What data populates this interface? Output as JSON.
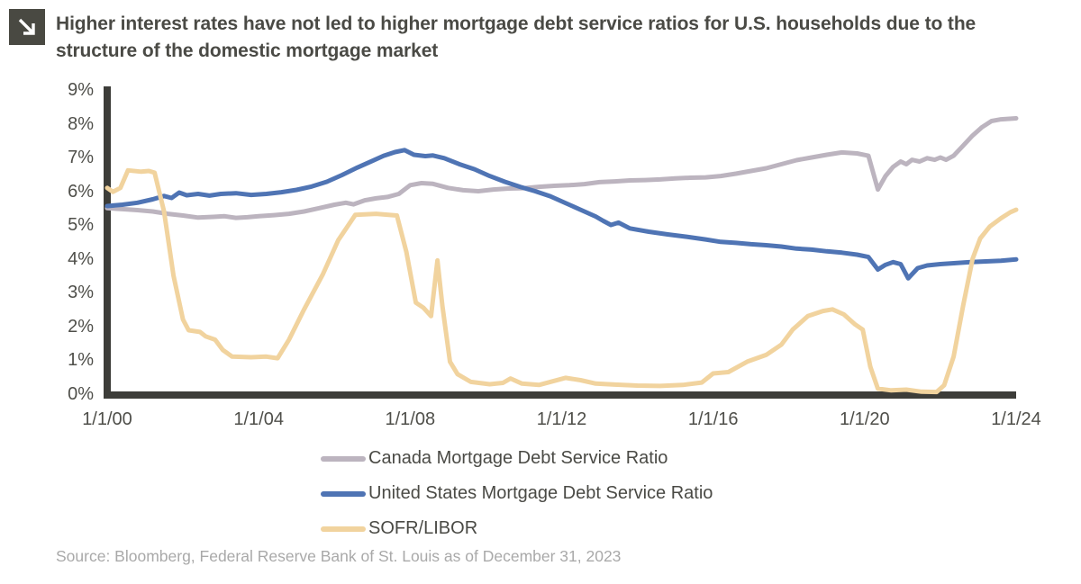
{
  "header": {
    "icon": "arrow-down-right"
  },
  "chart_data": {
    "type": "line",
    "title": "Higher interest rates have not led to higher mortgage debt service ratios for U.S. households due to the structure of the domestic mortgage market",
    "source": "Source: Bloomberg, Federal Reserve Bank of St. Louis as of December 31, 2023",
    "axis_color": "#3d3d39",
    "grid": "off",
    "legend_position": "bottom-center",
    "x_axis": {
      "range": [
        2000,
        2024
      ],
      "ticks": [
        "1/1/00",
        "1/1/04",
        "1/1/08",
        "1/1/12",
        "1/1/16",
        "1/1/20",
        "1/1/24"
      ]
    },
    "y_axis": {
      "range": [
        0,
        9
      ],
      "unit": "%",
      "ticks": [
        "0%",
        "1%",
        "2%",
        "3%",
        "4%",
        "5%",
        "6%",
        "7%",
        "8%",
        "9%"
      ]
    },
    "series": [
      {
        "id": "canada",
        "name": "Canada Mortgage Debt Service Ratio",
        "color": "#bcb4bf",
        "points": [
          [
            2000.0,
            5.5
          ],
          [
            2000.4,
            5.47
          ],
          [
            2000.8,
            5.44
          ],
          [
            2001.2,
            5.4
          ],
          [
            2001.6,
            5.33
          ],
          [
            2002.0,
            5.28
          ],
          [
            2002.4,
            5.22
          ],
          [
            2002.8,
            5.24
          ],
          [
            2003.1,
            5.26
          ],
          [
            2003.4,
            5.21
          ],
          [
            2003.7,
            5.23
          ],
          [
            2004.0,
            5.26
          ],
          [
            2004.4,
            5.29
          ],
          [
            2004.8,
            5.33
          ],
          [
            2005.2,
            5.4
          ],
          [
            2005.6,
            5.5
          ],
          [
            2006.0,
            5.6
          ],
          [
            2006.3,
            5.66
          ],
          [
            2006.5,
            5.61
          ],
          [
            2006.8,
            5.73
          ],
          [
            2007.1,
            5.79
          ],
          [
            2007.4,
            5.83
          ],
          [
            2007.7,
            5.92
          ],
          [
            2008.0,
            6.18
          ],
          [
            2008.3,
            6.24
          ],
          [
            2008.6,
            6.22
          ],
          [
            2009.0,
            6.1
          ],
          [
            2009.4,
            6.03
          ],
          [
            2009.8,
            6.0
          ],
          [
            2010.2,
            6.05
          ],
          [
            2010.6,
            6.08
          ],
          [
            2011.0,
            6.09
          ],
          [
            2011.4,
            6.13
          ],
          [
            2011.8,
            6.16
          ],
          [
            2012.2,
            6.18
          ],
          [
            2012.6,
            6.21
          ],
          [
            2013.0,
            6.27
          ],
          [
            2013.4,
            6.29
          ],
          [
            2013.8,
            6.32
          ],
          [
            2014.2,
            6.33
          ],
          [
            2014.6,
            6.35
          ],
          [
            2015.0,
            6.38
          ],
          [
            2015.4,
            6.4
          ],
          [
            2015.8,
            6.41
          ],
          [
            2016.2,
            6.45
          ],
          [
            2016.6,
            6.52
          ],
          [
            2017.0,
            6.6
          ],
          [
            2017.4,
            6.68
          ],
          [
            2017.8,
            6.8
          ],
          [
            2018.2,
            6.92
          ],
          [
            2018.6,
            7.0
          ],
          [
            2019.0,
            7.08
          ],
          [
            2019.4,
            7.15
          ],
          [
            2019.8,
            7.12
          ],
          [
            2020.1,
            7.05
          ],
          [
            2020.35,
            6.05
          ],
          [
            2020.55,
            6.45
          ],
          [
            2020.75,
            6.72
          ],
          [
            2020.95,
            6.88
          ],
          [
            2021.1,
            6.8
          ],
          [
            2021.25,
            6.93
          ],
          [
            2021.45,
            6.88
          ],
          [
            2021.65,
            6.98
          ],
          [
            2021.85,
            6.93
          ],
          [
            2022.0,
            7.0
          ],
          [
            2022.15,
            6.93
          ],
          [
            2022.35,
            7.05
          ],
          [
            2022.6,
            7.35
          ],
          [
            2022.85,
            7.65
          ],
          [
            2023.1,
            7.9
          ],
          [
            2023.35,
            8.08
          ],
          [
            2023.6,
            8.13
          ],
          [
            2024.0,
            8.16
          ]
        ]
      },
      {
        "id": "united-states",
        "name": "United States Mortgage Debt Service Ratio",
        "color": "#4f74b4",
        "points": [
          [
            2000.0,
            5.56
          ],
          [
            2000.4,
            5.6
          ],
          [
            2000.8,
            5.66
          ],
          [
            2001.2,
            5.76
          ],
          [
            2001.5,
            5.86
          ],
          [
            2001.7,
            5.8
          ],
          [
            2001.9,
            5.96
          ],
          [
            2002.1,
            5.88
          ],
          [
            2002.4,
            5.92
          ],
          [
            2002.7,
            5.87
          ],
          [
            2003.0,
            5.92
          ],
          [
            2003.4,
            5.94
          ],
          [
            2003.8,
            5.89
          ],
          [
            2004.2,
            5.92
          ],
          [
            2004.6,
            5.97
          ],
          [
            2005.0,
            6.04
          ],
          [
            2005.4,
            6.14
          ],
          [
            2005.8,
            6.28
          ],
          [
            2006.2,
            6.48
          ],
          [
            2006.6,
            6.7
          ],
          [
            2007.0,
            6.9
          ],
          [
            2007.3,
            7.05
          ],
          [
            2007.6,
            7.16
          ],
          [
            2007.85,
            7.22
          ],
          [
            2008.1,
            7.08
          ],
          [
            2008.4,
            7.04
          ],
          [
            2008.6,
            7.06
          ],
          [
            2008.9,
            6.98
          ],
          [
            2009.3,
            6.8
          ],
          [
            2009.7,
            6.65
          ],
          [
            2010.1,
            6.45
          ],
          [
            2010.5,
            6.28
          ],
          [
            2010.9,
            6.13
          ],
          [
            2011.3,
            6.0
          ],
          [
            2011.7,
            5.85
          ],
          [
            2012.1,
            5.65
          ],
          [
            2012.5,
            5.45
          ],
          [
            2012.9,
            5.25
          ],
          [
            2013.1,
            5.12
          ],
          [
            2013.3,
            5.0
          ],
          [
            2013.5,
            5.07
          ],
          [
            2013.8,
            4.9
          ],
          [
            2014.3,
            4.8
          ],
          [
            2014.8,
            4.72
          ],
          [
            2015.3,
            4.65
          ],
          [
            2015.8,
            4.57
          ],
          [
            2016.2,
            4.5
          ],
          [
            2016.6,
            4.47
          ],
          [
            2017.0,
            4.43
          ],
          [
            2017.4,
            4.4
          ],
          [
            2017.8,
            4.36
          ],
          [
            2018.2,
            4.3
          ],
          [
            2018.6,
            4.27
          ],
          [
            2019.0,
            4.22
          ],
          [
            2019.4,
            4.18
          ],
          [
            2019.8,
            4.12
          ],
          [
            2020.1,
            4.05
          ],
          [
            2020.35,
            3.68
          ],
          [
            2020.55,
            3.82
          ],
          [
            2020.75,
            3.9
          ],
          [
            2020.95,
            3.84
          ],
          [
            2021.15,
            3.42
          ],
          [
            2021.4,
            3.72
          ],
          [
            2021.65,
            3.8
          ],
          [
            2022.0,
            3.84
          ],
          [
            2022.4,
            3.87
          ],
          [
            2022.8,
            3.9
          ],
          [
            2023.2,
            3.92
          ],
          [
            2023.6,
            3.94
          ],
          [
            2024.0,
            3.98
          ]
        ]
      },
      {
        "id": "sofr-libor",
        "name": "SOFR/LIBOR",
        "color": "#f1d39e",
        "points": [
          [
            2000.0,
            6.1
          ],
          [
            2000.15,
            5.98
          ],
          [
            2000.35,
            6.1
          ],
          [
            2000.55,
            6.62
          ],
          [
            2000.9,
            6.58
          ],
          [
            2001.1,
            6.6
          ],
          [
            2001.25,
            6.55
          ],
          [
            2001.5,
            5.4
          ],
          [
            2001.75,
            3.5
          ],
          [
            2002.0,
            2.2
          ],
          [
            2002.15,
            1.88
          ],
          [
            2002.45,
            1.83
          ],
          [
            2002.6,
            1.7
          ],
          [
            2002.85,
            1.6
          ],
          [
            2003.05,
            1.3
          ],
          [
            2003.3,
            1.1
          ],
          [
            2003.8,
            1.08
          ],
          [
            2004.2,
            1.1
          ],
          [
            2004.5,
            1.05
          ],
          [
            2004.8,
            1.6
          ],
          [
            2005.2,
            2.5
          ],
          [
            2005.7,
            3.55
          ],
          [
            2006.1,
            4.55
          ],
          [
            2006.55,
            5.3
          ],
          [
            2007.1,
            5.33
          ],
          [
            2007.65,
            5.28
          ],
          [
            2007.9,
            4.2
          ],
          [
            2008.15,
            2.7
          ],
          [
            2008.35,
            2.55
          ],
          [
            2008.55,
            2.3
          ],
          [
            2008.72,
            3.95
          ],
          [
            2008.85,
            2.6
          ],
          [
            2009.05,
            0.95
          ],
          [
            2009.25,
            0.58
          ],
          [
            2009.6,
            0.35
          ],
          [
            2010.1,
            0.28
          ],
          [
            2010.45,
            0.32
          ],
          [
            2010.65,
            0.45
          ],
          [
            2010.95,
            0.3
          ],
          [
            2011.4,
            0.26
          ],
          [
            2011.8,
            0.38
          ],
          [
            2012.1,
            0.47
          ],
          [
            2012.5,
            0.4
          ],
          [
            2012.9,
            0.3
          ],
          [
            2013.4,
            0.27
          ],
          [
            2014.0,
            0.24
          ],
          [
            2014.6,
            0.23
          ],
          [
            2015.2,
            0.26
          ],
          [
            2015.7,
            0.33
          ],
          [
            2016.0,
            0.6
          ],
          [
            2016.4,
            0.64
          ],
          [
            2016.9,
            0.95
          ],
          [
            2017.4,
            1.15
          ],
          [
            2017.8,
            1.45
          ],
          [
            2018.1,
            1.9
          ],
          [
            2018.5,
            2.3
          ],
          [
            2018.9,
            2.45
          ],
          [
            2019.15,
            2.5
          ],
          [
            2019.45,
            2.35
          ],
          [
            2019.75,
            2.05
          ],
          [
            2019.95,
            1.9
          ],
          [
            2020.15,
            0.8
          ],
          [
            2020.35,
            0.15
          ],
          [
            2020.7,
            0.1
          ],
          [
            2021.1,
            0.12
          ],
          [
            2021.5,
            0.06
          ],
          [
            2021.9,
            0.05
          ],
          [
            2022.1,
            0.25
          ],
          [
            2022.35,
            1.1
          ],
          [
            2022.6,
            2.6
          ],
          [
            2022.85,
            4.0
          ],
          [
            2023.05,
            4.6
          ],
          [
            2023.3,
            4.95
          ],
          [
            2023.6,
            5.2
          ],
          [
            2023.85,
            5.38
          ],
          [
            2024.0,
            5.45
          ]
        ]
      }
    ]
  }
}
